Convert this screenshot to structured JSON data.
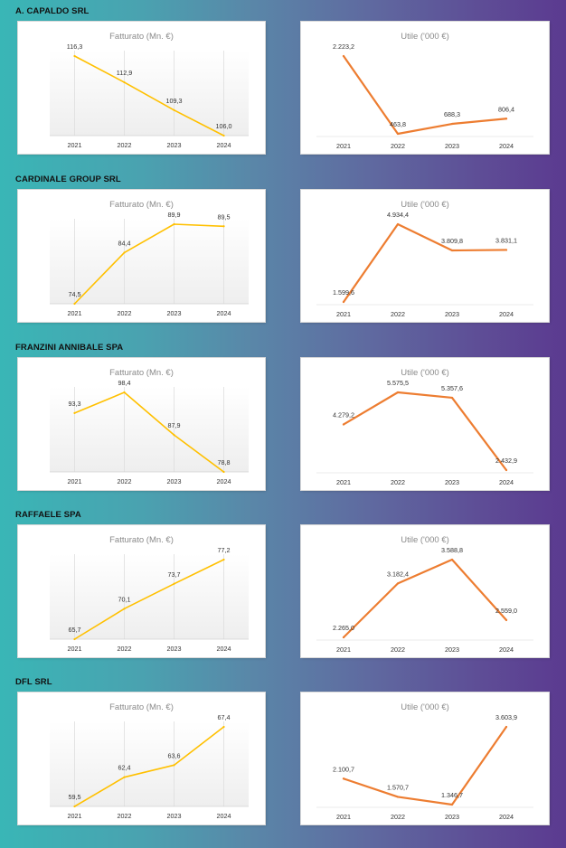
{
  "colors": {
    "fatturato": "#ffc000",
    "utile": "#ed7d31"
  },
  "chart_data": [
    {
      "company": "A. CAPALDO SRL",
      "fatturato": {
        "type": "line",
        "title": "Fatturato (Mn. €)",
        "categories": [
          "2021",
          "2022",
          "2023",
          "2024"
        ],
        "values": [
          116.3,
          112.9,
          109.3,
          106.0
        ],
        "labels": [
          "116,3",
          "112,9",
          "109,3",
          "106,0"
        ]
      },
      "utile": {
        "type": "line",
        "title": "Utile ('000 €)",
        "categories": [
          "2021",
          "2022",
          "2023",
          "2024"
        ],
        "values": [
          2223.2,
          463.8,
          688.3,
          806.4
        ],
        "labels": [
          "2.223,2",
          "463,8",
          "688,3",
          "806,4"
        ]
      }
    },
    {
      "company": "CARDINALE GROUP SRL",
      "fatturato": {
        "type": "line",
        "title": "Fatturato (Mn. €)",
        "categories": [
          "2021",
          "2022",
          "2023",
          "2024"
        ],
        "values": [
          74.5,
          84.4,
          89.9,
          89.5
        ],
        "labels": [
          "74,5",
          "84,4",
          "89,9",
          "89,5"
        ]
      },
      "utile": {
        "type": "line",
        "title": "Utile ('000 €)",
        "categories": [
          "2021",
          "2022",
          "2023",
          "2024"
        ],
        "values": [
          1599.6,
          4934.4,
          3809.8,
          3831.1
        ],
        "labels": [
          "1.599,6",
          "4.934,4",
          "3.809,8",
          "3.831,1"
        ]
      }
    },
    {
      "company": "FRANZINI ANNIBALE SPA",
      "fatturato": {
        "type": "line",
        "title": "Fatturato (Mn. €)",
        "categories": [
          "2021",
          "2022",
          "2023",
          "2024"
        ],
        "values": [
          93.3,
          98.4,
          87.9,
          78.8
        ],
        "labels": [
          "93,3",
          "98,4",
          "87,9",
          "78,8"
        ]
      },
      "utile": {
        "type": "line",
        "title": "Utile ('000 €)",
        "categories": [
          "2021",
          "2022",
          "2023",
          "2024"
        ],
        "values": [
          4279.2,
          5575.5,
          5357.6,
          2432.9
        ],
        "labels": [
          "4.279,2",
          "5.575,5",
          "5.357,6",
          "2.432,9"
        ]
      }
    },
    {
      "company": "RAFFAELE SPA",
      "fatturato": {
        "type": "line",
        "title": "Fatturato (Mn. €)",
        "categories": [
          "2021",
          "2022",
          "2023",
          "2024"
        ],
        "values": [
          65.7,
          70.1,
          73.7,
          77.2
        ],
        "labels": [
          "65,7",
          "70,1",
          "73,7",
          "77,2"
        ]
      },
      "utile": {
        "type": "line",
        "title": "Utile ('000 €)",
        "categories": [
          "2021",
          "2022",
          "2023",
          "2024"
        ],
        "values": [
          2265.0,
          3182.4,
          3588.8,
          2559.0
        ],
        "labels": [
          "2.265,0",
          "3.182,4",
          "3.588,8",
          "2.559,0"
        ]
      }
    },
    {
      "company": "DFL SRL",
      "fatturato": {
        "type": "line",
        "title": "Fatturato (Mn. €)",
        "categories": [
          "2021",
          "2022",
          "2023",
          "2024"
        ],
        "values": [
          59.5,
          62.4,
          63.6,
          67.4
        ],
        "labels": [
          "59,5",
          "62,4",
          "63,6",
          "67,4"
        ]
      },
      "utile": {
        "type": "line",
        "title": "Utile ('000 €)",
        "categories": [
          "2021",
          "2022",
          "2023",
          "2024"
        ],
        "values": [
          2100.7,
          1570.7,
          1346.7,
          3603.9
        ],
        "labels": [
          "2.100,7",
          "1.570,7",
          "1.346,7",
          "3.603,9"
        ]
      }
    }
  ]
}
